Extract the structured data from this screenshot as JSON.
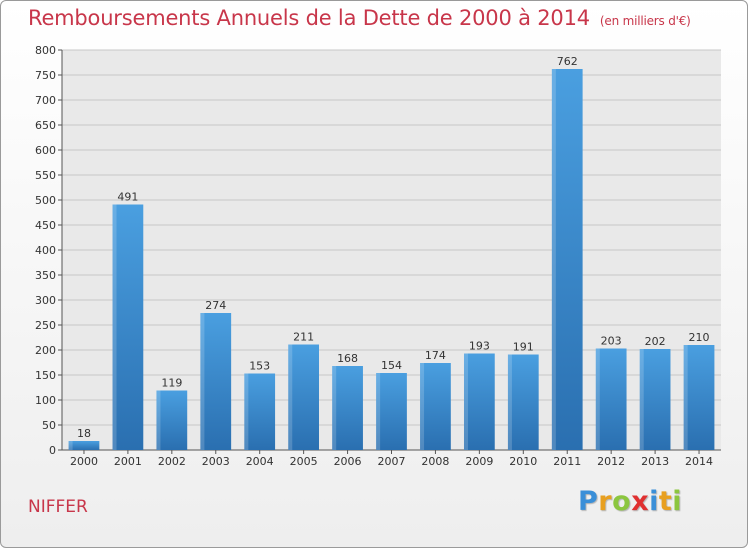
{
  "chart_data": {
    "type": "bar",
    "title": "Remboursements Annuels de la Dette de 2000 à 2014",
    "unit_label": "(en milliers d'€)",
    "categories": [
      "2000",
      "2001",
      "2002",
      "2003",
      "2004",
      "2005",
      "2006",
      "2007",
      "2008",
      "2009",
      "2010",
      "2011",
      "2012",
      "2013",
      "2014"
    ],
    "values": [
      18,
      491,
      119,
      274,
      153,
      211,
      168,
      154,
      174,
      193,
      191,
      762,
      203,
      202,
      210
    ],
    "ylim": [
      0,
      800
    ],
    "yticks": [
      0,
      50,
      100,
      150,
      200,
      250,
      300,
      350,
      400,
      450,
      500,
      550,
      600,
      650,
      700,
      750,
      800
    ],
    "grid": true,
    "bar_color": "#4a9fe0",
    "bar_color_dark": "#2a6fb0"
  },
  "footer": {
    "commune": "NIFFER",
    "logo_letters": [
      {
        "ch": "P",
        "color": "#3a8fd8"
      },
      {
        "ch": "r",
        "color": "#e8a020"
      },
      {
        "ch": "o",
        "color": "#8cc63f"
      },
      {
        "ch": "x",
        "color": "#e03030"
      },
      {
        "ch": "i",
        "color": "#3a8fd8"
      },
      {
        "ch": "t",
        "color": "#e8a020"
      },
      {
        "ch": "i",
        "color": "#8cc63f"
      }
    ]
  }
}
